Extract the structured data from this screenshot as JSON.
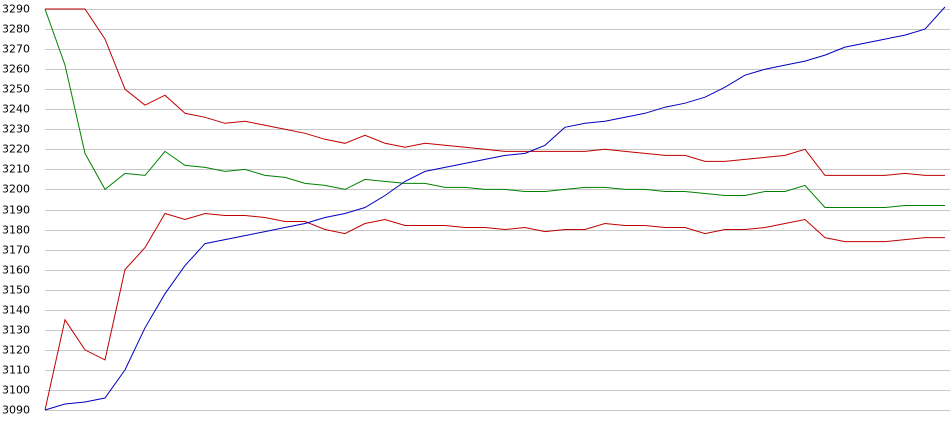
{
  "chart_data": {
    "type": "line",
    "ylim": [
      3090,
      3290
    ],
    "yticks": [
      3090,
      3100,
      3110,
      3120,
      3130,
      3140,
      3150,
      3160,
      3170,
      3180,
      3190,
      3200,
      3210,
      3220,
      3230,
      3240,
      3250,
      3260,
      3270,
      3280,
      3290
    ],
    "grid": true,
    "series": [
      {
        "color": "#c00000",
        "values": [
          3290,
          3290,
          3290,
          3275,
          3250,
          3242,
          3247,
          3238,
          3236,
          3233,
          3234,
          3232,
          3230,
          3228,
          3225,
          3223,
          3227,
          3223,
          3221,
          3223,
          3222,
          3221,
          3220,
          3219,
          3219,
          3219,
          3219,
          3219,
          3220,
          3219,
          3218,
          3217,
          3217,
          3214,
          3214,
          3215,
          3216,
          3217,
          3220,
          3207,
          3207,
          3207,
          3207,
          3208,
          3207,
          3207
        ]
      },
      {
        "color": "#008000",
        "values": [
          3290,
          3262,
          3218,
          3200,
          3208,
          3207,
          3219,
          3212,
          3211,
          3209,
          3210,
          3207,
          3206,
          3203,
          3202,
          3200,
          3205,
          3204,
          3203,
          3203,
          3201,
          3201,
          3200,
          3200,
          3199,
          3199,
          3200,
          3201,
          3201,
          3200,
          3200,
          3199,
          3199,
          3198,
          3197,
          3197,
          3199,
          3199,
          3202,
          3191,
          3191,
          3191,
          3191,
          3192,
          3192,
          3192
        ]
      },
      {
        "color": "#c00000",
        "values": [
          3090,
          3135,
          3120,
          3115,
          3160,
          3171,
          3188,
          3185,
          3188,
          3187,
          3187,
          3186,
          3184,
          3184,
          3180,
          3178,
          3183,
          3185,
          3182,
          3182,
          3182,
          3181,
          3181,
          3180,
          3181,
          3179,
          3180,
          3180,
          3183,
          3182,
          3182,
          3181,
          3181,
          3178,
          3180,
          3180,
          3181,
          3183,
          3185,
          3176,
          3174,
          3174,
          3174,
          3175,
          3176,
          3176
        ]
      },
      {
        "color": "#0000c0",
        "values": [
          3090,
          3093,
          3094,
          3096,
          3110,
          3131,
          3148,
          3162,
          3173,
          3175,
          3177,
          3179,
          3181,
          3183,
          3186,
          3188,
          3191,
          3197,
          3204,
          3209,
          3211,
          3213,
          3215,
          3217,
          3218,
          3222,
          3231,
          3233,
          3234,
          3236,
          3238,
          3241,
          3243,
          3246,
          3251,
          3257,
          3260,
          3262,
          3264,
          3267,
          3271,
          3273,
          3275,
          3277,
          3280,
          3291
        ]
      }
    ]
  }
}
